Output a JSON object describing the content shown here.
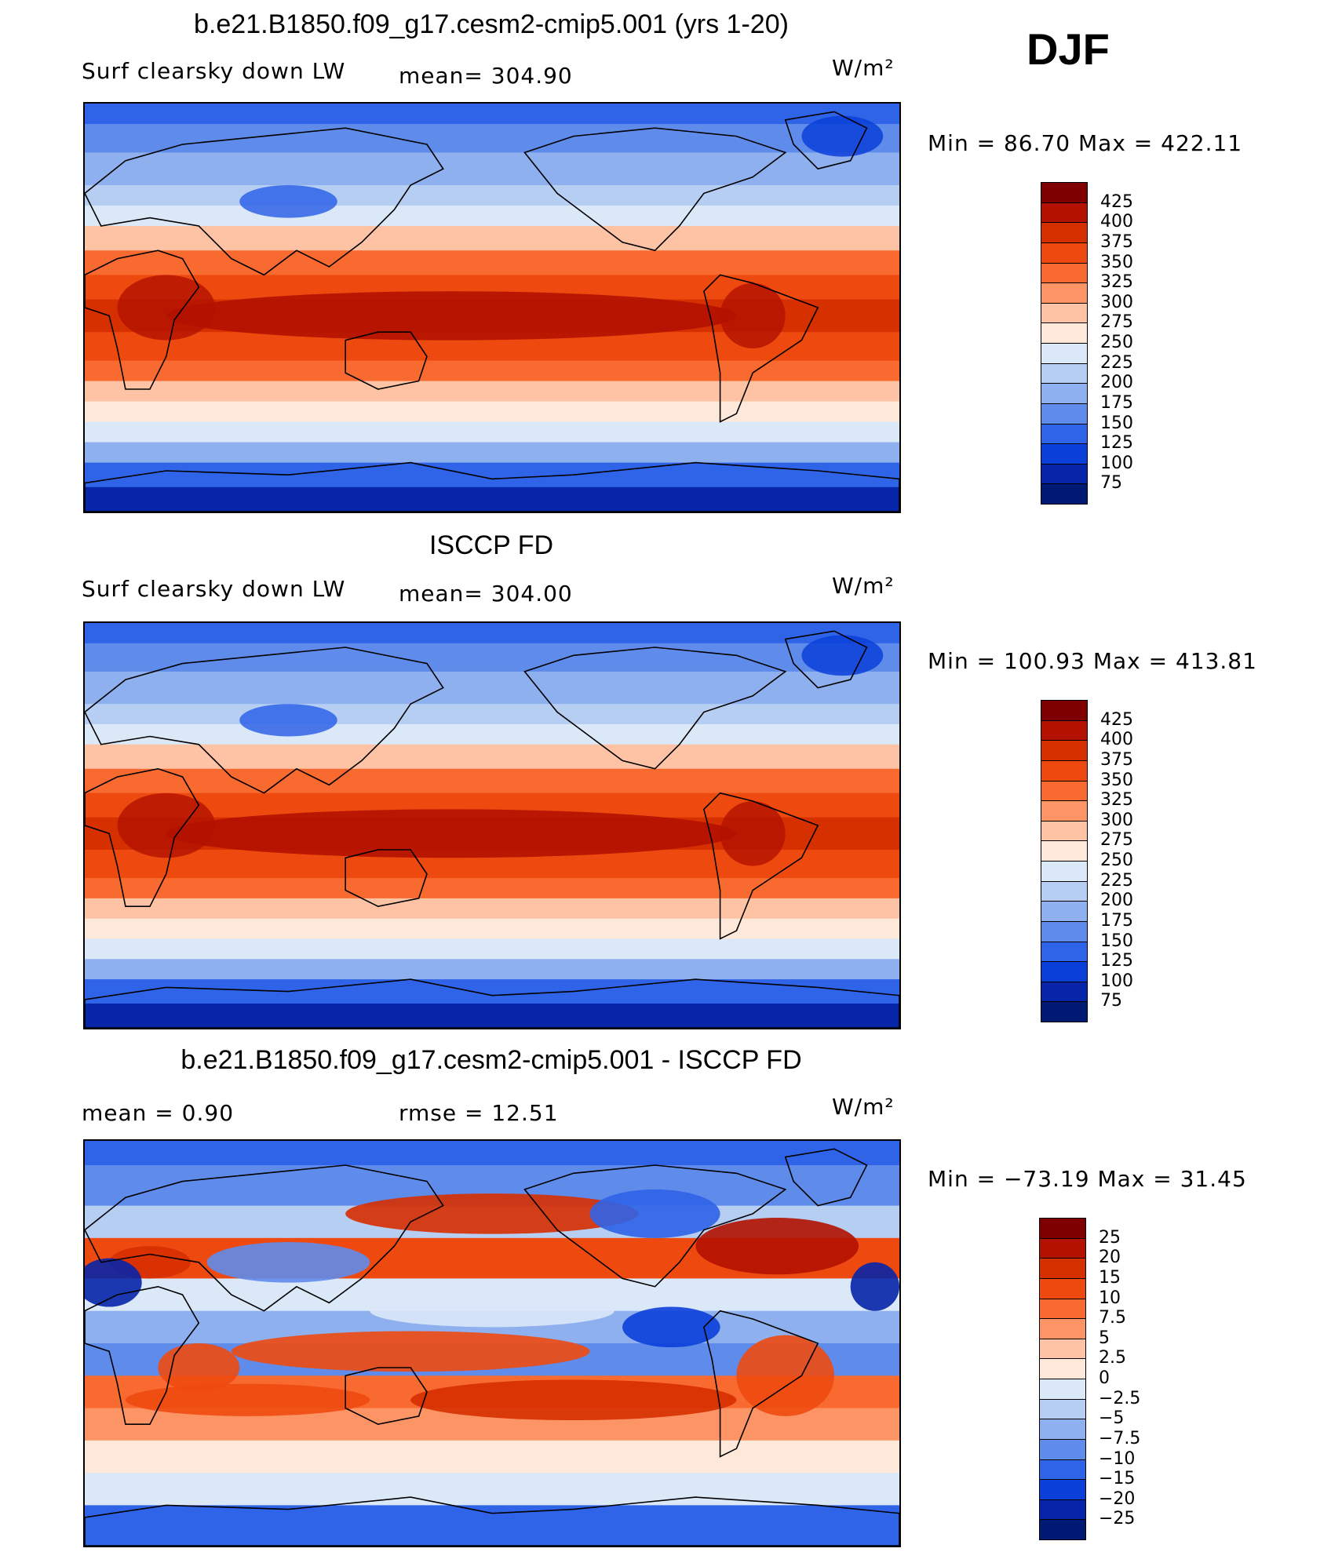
{
  "season": "DJF",
  "panels": [
    {
      "id": "model",
      "title": "b.e21.B1850.f09_g17.cesm2-cmip5.001 (yrs 1-20)",
      "left_label": "Surf clearsky down LW",
      "mid_label": "mean= 304.90",
      "units_label": "W/m²",
      "stats": "Min =   86.70 Max = 422.11",
      "colorbar_ticks": [
        "425",
        "400",
        "375",
        "350",
        "325",
        "300",
        "275",
        "250",
        "225",
        "200",
        "175",
        "150",
        "125",
        "100",
        "75"
      ],
      "colorbar_colors": [
        "#7f0000",
        "#b31200",
        "#d62f00",
        "#ee4a10",
        "#f86a30",
        "#fc9465",
        "#fdc3a4",
        "#fde8d9",
        "#dbe8f8",
        "#b7cef3",
        "#8fb0ee",
        "#5f8bea",
        "#2f63e8",
        "#0b3fd9",
        "#0725a9",
        "#001a73"
      ],
      "map_style": "absolute"
    },
    {
      "id": "obs",
      "title": "ISCCP FD",
      "left_label": "Surf clearsky down LW",
      "mid_label": "mean= 304.00",
      "units_label": "W/m²",
      "stats": "Min = 100.93 Max = 413.81",
      "colorbar_ticks": [
        "425",
        "400",
        "375",
        "350",
        "325",
        "300",
        "275",
        "250",
        "225",
        "200",
        "175",
        "150",
        "125",
        "100",
        "75"
      ],
      "colorbar_colors": [
        "#7f0000",
        "#b31200",
        "#d62f00",
        "#ee4a10",
        "#f86a30",
        "#fc9465",
        "#fdc3a4",
        "#fde8d9",
        "#dbe8f8",
        "#b7cef3",
        "#8fb0ee",
        "#5f8bea",
        "#2f63e8",
        "#0b3fd9",
        "#0725a9",
        "#001a73"
      ],
      "map_style": "absolute"
    },
    {
      "id": "diff",
      "title": "b.e21.B1850.f09_g17.cesm2-cmip5.001 - ISCCP FD",
      "left_label": "mean =     0.90",
      "mid_label": "rmse =    12.51",
      "units_label": "W/m²",
      "stats": "Min = −73.19 Max =   31.45",
      "colorbar_ticks": [
        "25",
        "20",
        "15",
        "10",
        "7.5",
        "5",
        "2.5",
        "0",
        "−2.5",
        "−5",
        "−7.5",
        "−10",
        "−15",
        "−20",
        "−25"
      ],
      "colorbar_colors": [
        "#7f0000",
        "#b31200",
        "#d62f00",
        "#ee4a10",
        "#f86a30",
        "#fc9465",
        "#fdc3a4",
        "#fde8d9",
        "#dbe8f8",
        "#b7cef3",
        "#8fb0ee",
        "#5f8bea",
        "#2f63e8",
        "#0b3fd9",
        "#0725a9",
        "#001a73"
      ],
      "map_style": "difference"
    }
  ]
}
